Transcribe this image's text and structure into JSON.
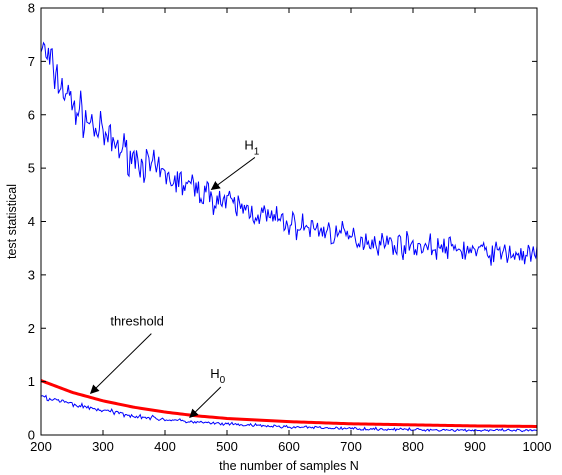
{
  "chart_data": {
    "type": "line",
    "title": "",
    "xlabel": "the number of samples N",
    "ylabel": "test statistical",
    "xlim": [
      200,
      1000
    ],
    "ylim": [
      0,
      8
    ],
    "xticks": [
      200,
      300,
      400,
      500,
      600,
      700,
      800,
      900,
      1000
    ],
    "yticks": [
      0,
      1,
      2,
      3,
      4,
      5,
      6,
      7,
      8
    ],
    "grid": false,
    "box": true,
    "series": [
      {
        "name": "H1",
        "color": "#0000ff",
        "noisy": true,
        "x": [
          200,
          225,
          250,
          275,
          300,
          350,
          400,
          450,
          500,
          550,
          600,
          650,
          700,
          750,
          800,
          850,
          900,
          950,
          1000
        ],
        "y": [
          7.3,
          6.7,
          6.2,
          5.9,
          5.6,
          5.2,
          4.85,
          4.6,
          4.35,
          4.15,
          3.95,
          3.85,
          3.7,
          3.6,
          3.55,
          3.5,
          3.45,
          3.4,
          3.35
        ]
      },
      {
        "name": "H0",
        "color": "#0000ff",
        "noisy": true,
        "x": [
          200,
          250,
          300,
          350,
          400,
          450,
          500,
          600,
          700,
          800,
          900,
          1000
        ],
        "y": [
          0.72,
          0.58,
          0.46,
          0.36,
          0.29,
          0.24,
          0.2,
          0.15,
          0.12,
          0.1,
          0.09,
          0.08
        ]
      },
      {
        "name": "threshold",
        "color": "#ff0000",
        "noisy": false,
        "x": [
          200,
          250,
          300,
          350,
          400,
          450,
          500,
          600,
          700,
          800,
          900,
          1000
        ],
        "y": [
          1.02,
          0.8,
          0.64,
          0.52,
          0.43,
          0.36,
          0.31,
          0.25,
          0.21,
          0.19,
          0.17,
          0.16
        ]
      }
    ],
    "annotations": [
      {
        "main": "H",
        "sub": "1",
        "text_at": [
          540,
          5.35
        ],
        "arrow_from": [
          545,
          5.2
        ],
        "arrow_to": [
          475,
          4.6
        ]
      },
      {
        "main": "threshold",
        "sub": "",
        "text_at": [
          355,
          2.05
        ],
        "arrow_from": [
          378,
          1.9
        ],
        "arrow_to": [
          280,
          0.78
        ]
      },
      {
        "main": "H",
        "sub": "0",
        "text_at": [
          485,
          1.07
        ],
        "arrow_from": [
          490,
          0.9
        ],
        "arrow_to": [
          440,
          0.33
        ]
      }
    ]
  }
}
